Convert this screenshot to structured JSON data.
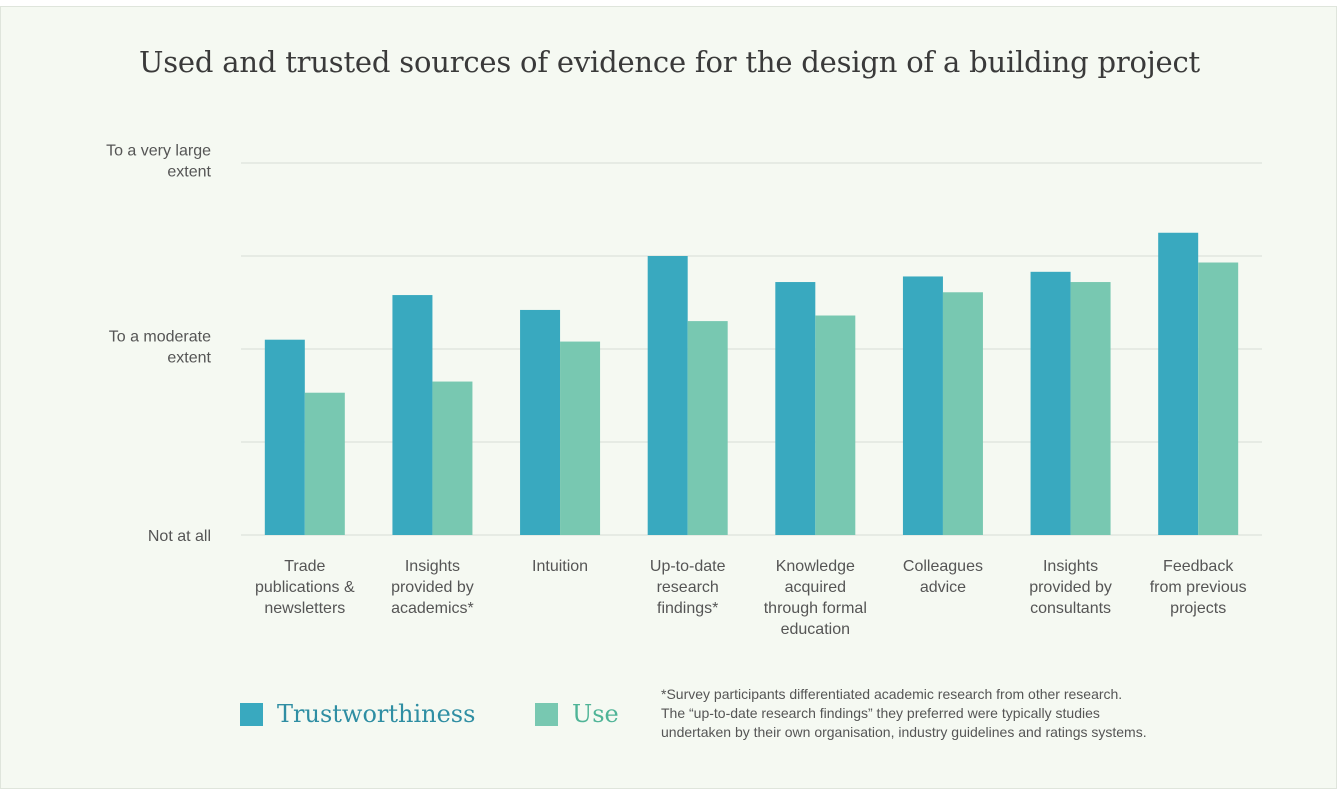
{
  "chart_data": {
    "type": "bar",
    "title": "Used and trusted sources of evidence for the design of a building project",
    "categories": [
      [
        "Trade",
        "publications &",
        "newsletters"
      ],
      [
        "Insights",
        "provided by",
        "academics*"
      ],
      [
        "Intuition"
      ],
      [
        "Up-to-date",
        "research",
        "findings*"
      ],
      [
        "Knowledge",
        "acquired",
        "through formal",
        "education"
      ],
      [
        "Colleagues",
        "advice"
      ],
      [
        "Insights",
        "provided by",
        "consultants"
      ],
      [
        "Feedback",
        "from previous",
        "projects"
      ]
    ],
    "series": [
      {
        "name": "Trustworthiness",
        "color": "#39a9bf",
        "values": [
          2.1,
          2.58,
          2.42,
          3.0,
          2.72,
          2.78,
          2.83,
          3.25
        ]
      },
      {
        "name": "Use",
        "color": "#78c8b1",
        "values": [
          1.53,
          1.65,
          2.08,
          2.3,
          2.36,
          2.61,
          2.72,
          2.93
        ]
      }
    ],
    "ylim": [
      0,
      4
    ],
    "yticks": [
      {
        "value": 0,
        "label": [
          "Not at all"
        ]
      },
      {
        "value": 1,
        "label": []
      },
      {
        "value": 2,
        "label": [
          "To a moderate",
          "extent"
        ]
      },
      {
        "value": 3,
        "label": []
      },
      {
        "value": 4,
        "label": [
          "To a very large",
          "extent"
        ]
      }
    ],
    "grid": true,
    "legend_position": "bottom-left"
  },
  "footnote": [
    "*Survey participants differentiated academic research from other research.",
    "The “up-to-date research findings” they preferred were typically studies",
    "undertaken by their own organisation, industry guidelines and ratings systems."
  ]
}
